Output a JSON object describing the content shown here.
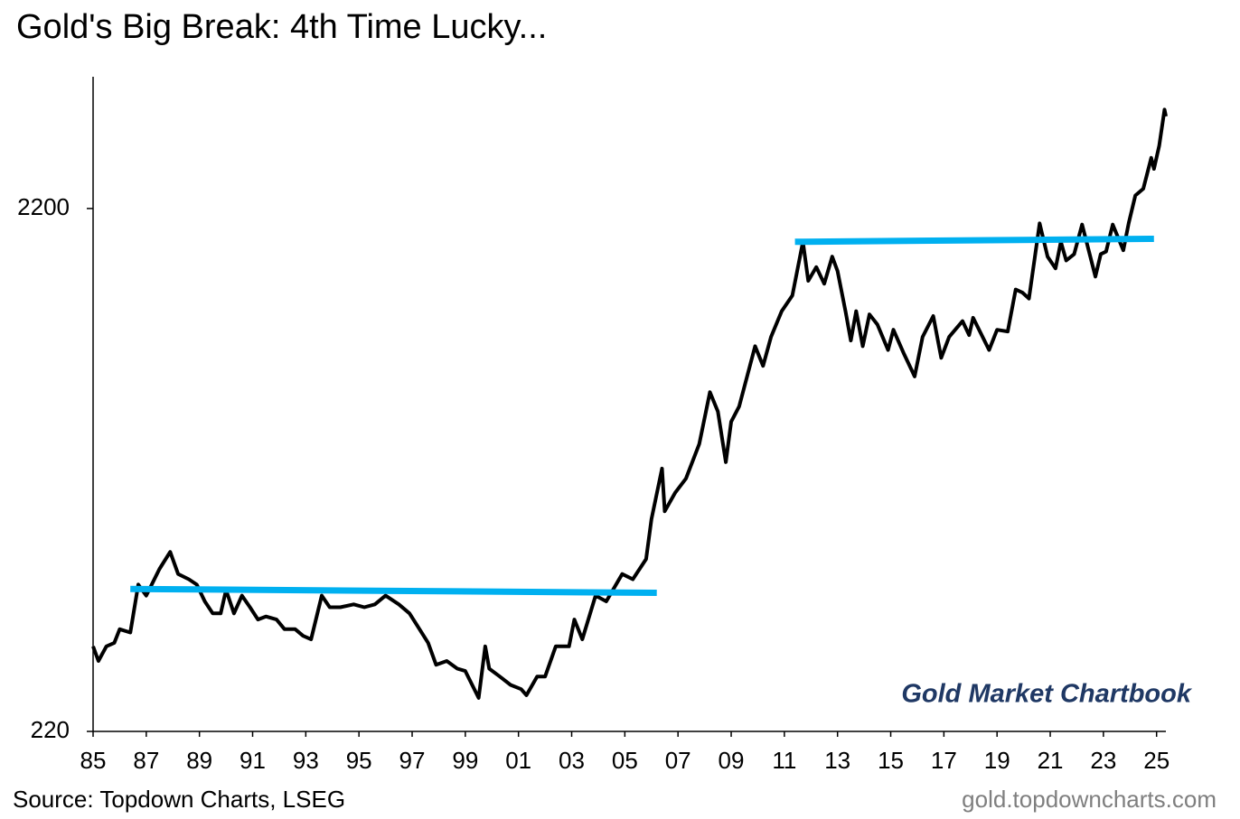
{
  "chart_data": {
    "type": "line",
    "title": "Gold's Big Break: 4th Time Lucky...",
    "watermark": "Gold Market Chartbook",
    "source": "Source: Topdown Charts, LSEG",
    "website": "gold.topdowncharts.com",
    "log_scale": true,
    "xlim": [
      1985,
      2025.35
    ],
    "ylim": [
      220,
      3930
    ],
    "yticks": [
      220,
      2200
    ],
    "xticks": [
      {
        "value": 1985,
        "label": "85"
      },
      {
        "value": 1987,
        "label": "87"
      },
      {
        "value": 1989,
        "label": "89"
      },
      {
        "value": 1991,
        "label": "91"
      },
      {
        "value": 1993,
        "label": "93"
      },
      {
        "value": 1995,
        "label": "95"
      },
      {
        "value": 1997,
        "label": "97"
      },
      {
        "value": 1999,
        "label": "99"
      },
      {
        "value": 2001,
        "label": "01"
      },
      {
        "value": 2003,
        "label": "03"
      },
      {
        "value": 2005,
        "label": "05"
      },
      {
        "value": 2007,
        "label": "07"
      },
      {
        "value": 2009,
        "label": "09"
      },
      {
        "value": 2011,
        "label": "11"
      },
      {
        "value": 2013,
        "label": "13"
      },
      {
        "value": 2015,
        "label": "15"
      },
      {
        "value": 2017,
        "label": "17"
      },
      {
        "value": 2019,
        "label": "19"
      },
      {
        "value": 2021,
        "label": "21"
      },
      {
        "value": 2023,
        "label": "23"
      },
      {
        "value": 2025,
        "label": "25"
      }
    ],
    "series": [
      {
        "color": "#000000",
        "x": [
          1985.0,
          1985.2,
          1985.5,
          1985.8,
          1986.0,
          1986.4,
          1986.7,
          1987.0,
          1987.5,
          1987.9,
          1988.2,
          1988.6,
          1988.9,
          1989.2,
          1989.5,
          1989.8,
          1990.0,
          1990.3,
          1990.6,
          1990.9,
          1991.2,
          1991.5,
          1991.9,
          1992.2,
          1992.6,
          1992.9,
          1993.2,
          1993.6,
          1993.9,
          1994.3,
          1994.8,
          1995.2,
          1995.6,
          1996.0,
          1996.5,
          1996.9,
          1997.2,
          1997.6,
          1997.9,
          1998.3,
          1998.7,
          1999.0,
          1999.5,
          1999.75,
          1999.9,
          2000.3,
          2000.7,
          2001.1,
          2001.3,
          2001.7,
          2002.0,
          2002.4,
          2002.9,
          2003.1,
          2003.4,
          2003.9,
          2004.3,
          2004.9,
          2005.3,
          2005.8,
          2006.0,
          2006.4,
          2006.5,
          2006.9,
          2007.3,
          2007.8,
          2008.2,
          2008.5,
          2008.8,
          2009.0,
          2009.3,
          2009.9,
          2010.2,
          2010.5,
          2010.9,
          2011.3,
          2011.7,
          2011.9,
          2012.2,
          2012.5,
          2012.8,
          2013.0,
          2013.3,
          2013.5,
          2013.7,
          2013.95,
          2014.2,
          2014.5,
          2014.9,
          2015.1,
          2015.5,
          2015.9,
          2016.2,
          2016.6,
          2016.9,
          2017.2,
          2017.7,
          2017.95,
          2018.1,
          2018.7,
          2019.0,
          2019.4,
          2019.7,
          2019.95,
          2020.2,
          2020.6,
          2020.9,
          2021.2,
          2021.4,
          2021.6,
          2021.9,
          2022.2,
          2022.7,
          2022.9,
          2023.1,
          2023.35,
          2023.75,
          2023.95,
          2024.2,
          2024.5,
          2024.8,
          2024.9,
          2025.1,
          2025.3,
          2025.35
        ],
        "values": [
          320,
          300,
          320,
          325,
          345,
          340,
          420,
          400,
          450,
          485,
          440,
          430,
          420,
          390,
          370,
          370,
          410,
          370,
          400,
          380,
          360,
          365,
          360,
          345,
          345,
          335,
          330,
          400,
          380,
          380,
          385,
          380,
          385,
          400,
          385,
          370,
          350,
          325,
          295,
          300,
          290,
          287,
          255,
          320,
          290,
          280,
          270,
          265,
          258,
          280,
          280,
          320,
          320,
          360,
          330,
          400,
          390,
          440,
          430,
          470,
          560,
          700,
          580,
          630,
          670,
          780,
          980,
          900,
          720,
          860,
          920,
          1200,
          1100,
          1250,
          1400,
          1500,
          1900,
          1600,
          1700,
          1580,
          1780,
          1670,
          1400,
          1230,
          1400,
          1200,
          1380,
          1320,
          1180,
          1290,
          1160,
          1050,
          1250,
          1370,
          1140,
          1250,
          1340,
          1260,
          1360,
          1180,
          1290,
          1280,
          1540,
          1520,
          1480,
          2060,
          1780,
          1690,
          1900,
          1750,
          1800,
          2050,
          1630,
          1800,
          1820,
          2050,
          1830,
          2060,
          2330,
          2400,
          2750,
          2620,
          2900,
          3400,
          3300
        ]
      },
      {
        "color": "#00b0f0",
        "x": [
          1986.4,
          2006.2
        ],
        "values": [
          412,
          405
        ]
      },
      {
        "color": "#00b0f0",
        "x": [
          2011.4,
          2024.9
        ],
        "values": [
          1900,
          1925
        ]
      }
    ]
  }
}
